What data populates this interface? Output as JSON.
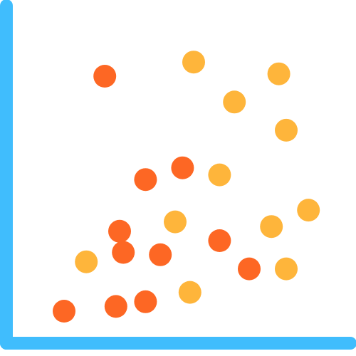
{
  "icon": {
    "name": "scatter-plot-icon",
    "colors": {
      "axis": "#40bdfd",
      "series_dark": "#fd6724",
      "series_light": "#feb53b"
    },
    "series": [
      {
        "color": "series_dark",
        "points": [
          {
            "x": 1,
            "y": 1
          },
          {
            "x": 2.4,
            "y": 1.2
          },
          {
            "x": 3.2,
            "y": 1.4
          },
          {
            "x": 2.6,
            "y": 3.5
          },
          {
            "x": 3.6,
            "y": 3.4
          },
          {
            "x": 2.5,
            "y": 4.4
          },
          {
            "x": 3.2,
            "y": 6.6
          },
          {
            "x": 4.2,
            "y": 7.1
          },
          {
            "x": 5.2,
            "y": 4.0
          },
          {
            "x": 6.0,
            "y": 2.8
          },
          {
            "x": 2.1,
            "y": 11.0
          }
        ]
      },
      {
        "color": "series_light",
        "points": [
          {
            "x": 1.6,
            "y": 3.1
          },
          {
            "x": 4.0,
            "y": 4.8
          },
          {
            "x": 4.4,
            "y": 1.8
          },
          {
            "x": 5.2,
            "y": 6.8
          },
          {
            "x": 6.6,
            "y": 4.6
          },
          {
            "x": 7.0,
            "y": 8.7
          },
          {
            "x": 7.6,
            "y": 5.3
          },
          {
            "x": 5.6,
            "y": 9.9
          },
          {
            "x": 4.5,
            "y": 11.6
          },
          {
            "x": 6.8,
            "y": 11.1
          },
          {
            "x": 7.0,
            "y": 2.8
          }
        ]
      }
    ]
  }
}
